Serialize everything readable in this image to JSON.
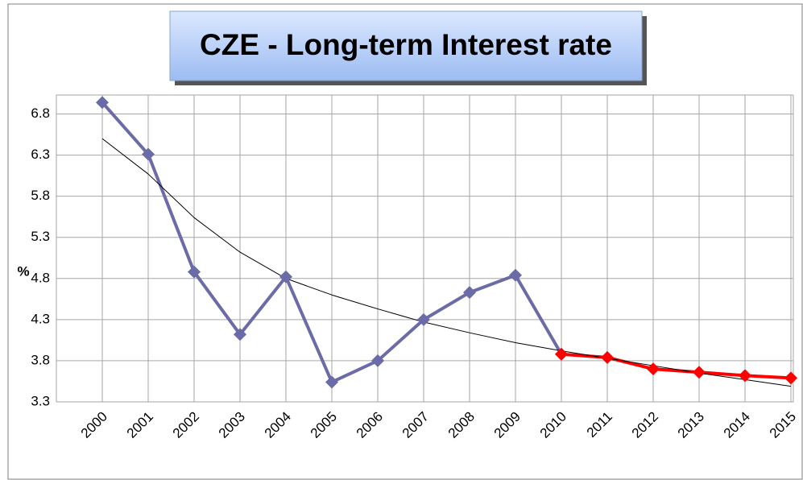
{
  "chart_data": {
    "type": "line",
    "title": "CZE - Long-term Interest rate",
    "y_label": "%",
    "categories": [
      "2000",
      "2001",
      "2002",
      "2003",
      "2004",
      "2005",
      "2006",
      "2007",
      "2008",
      "2009",
      "2010",
      "2011",
      "2012",
      "2013",
      "2014",
      "2015"
    ],
    "series": [
      {
        "color": "#6b6ba8",
        "marker": "diamond",
        "width": 4,
        "values": [
          6.94,
          6.31,
          4.88,
          4.12,
          4.82,
          3.54,
          3.8,
          4.3,
          4.63,
          4.84,
          3.88,
          null,
          null,
          null,
          null,
          null
        ]
      },
      {
        "color": "#ff0000",
        "marker": "diamond",
        "width": 4,
        "values": [
          null,
          null,
          null,
          null,
          null,
          null,
          null,
          null,
          null,
          null,
          3.88,
          3.84,
          3.7,
          3.66,
          3.62,
          3.59
        ]
      },
      {
        "color": "#000000",
        "marker": "none",
        "width": 1,
        "values": [
          6.5,
          6.07,
          5.54,
          5.12,
          4.8,
          4.6,
          4.43,
          4.27,
          4.14,
          4.02,
          3.92,
          3.83,
          3.74,
          3.65,
          3.57,
          3.49
        ]
      }
    ],
    "ylim": [
      3.3,
      7.03
    ],
    "yticks": [
      3.3,
      3.8,
      4.3,
      4.8,
      5.3,
      5.8,
      6.3,
      6.8
    ],
    "grid": true
  }
}
